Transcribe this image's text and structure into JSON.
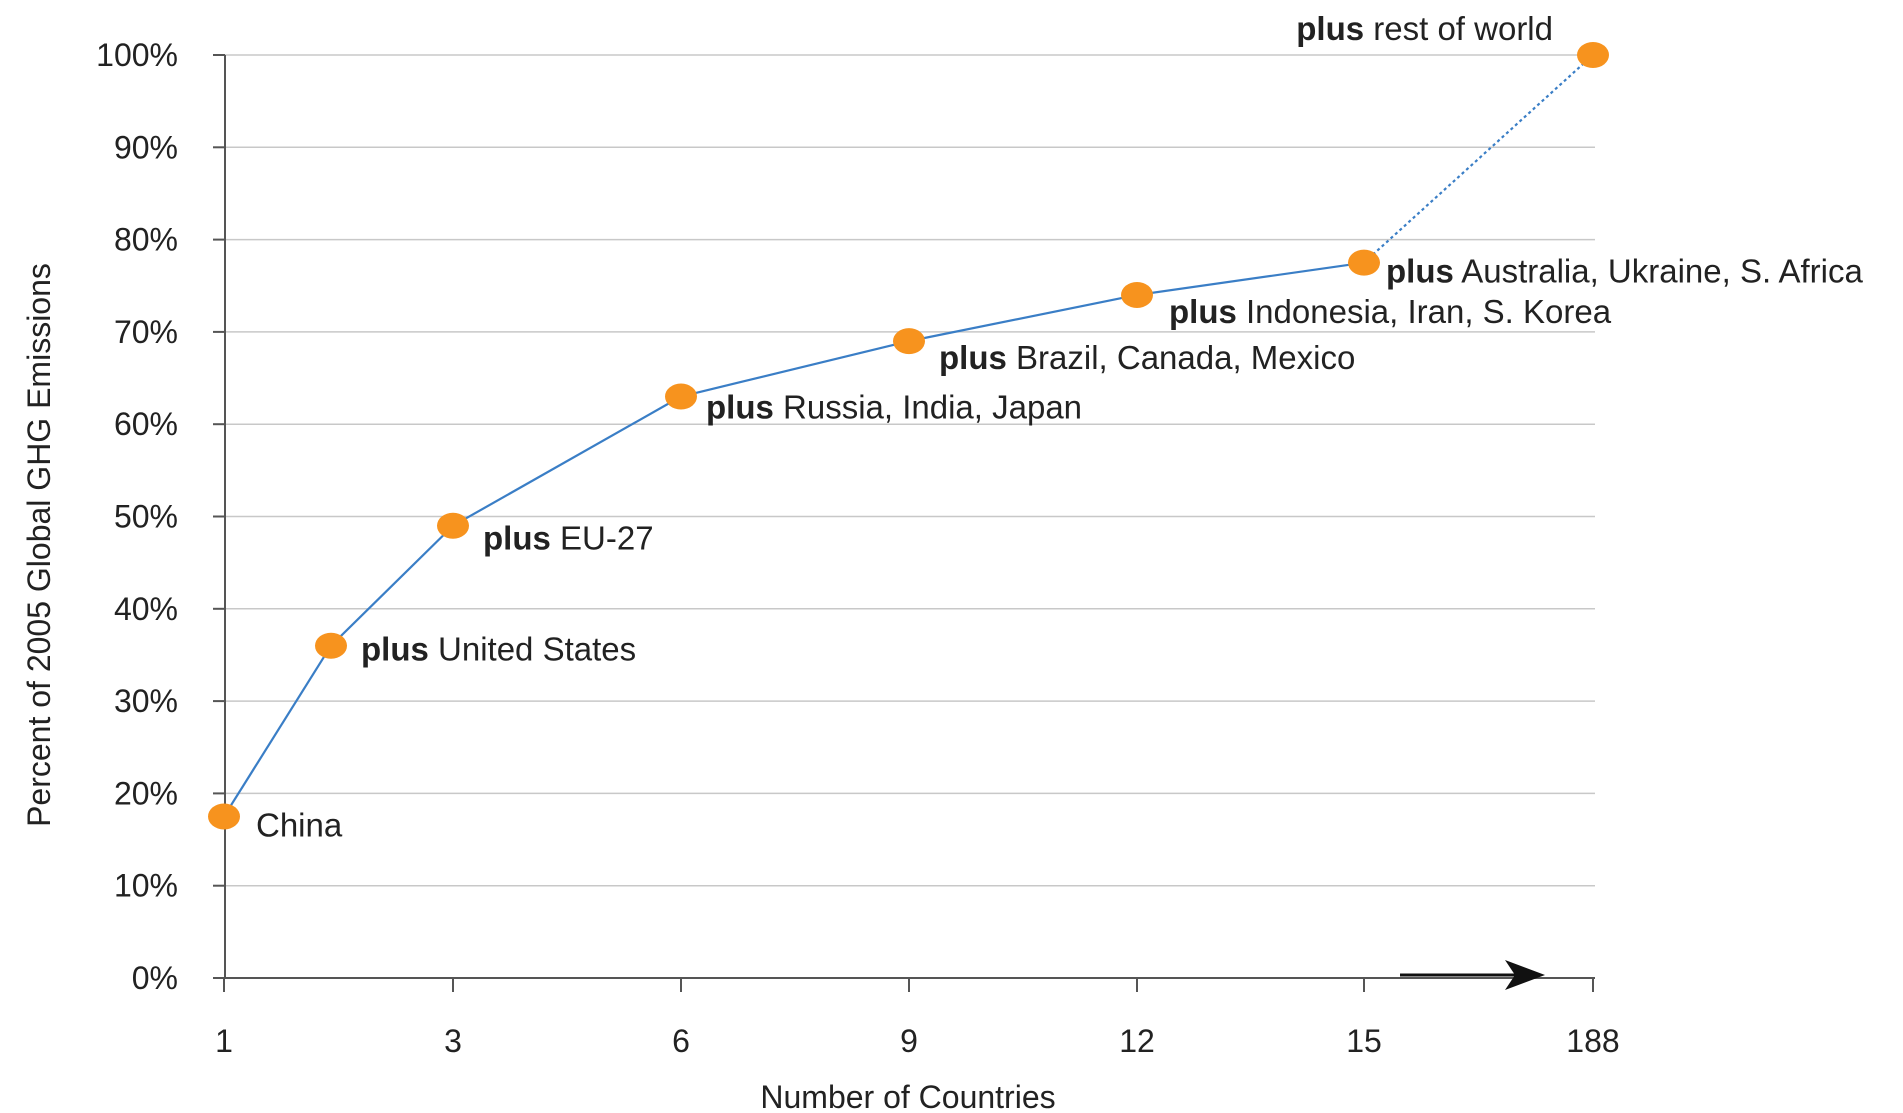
{
  "chart_data": {
    "type": "line",
    "xlabel": "Number of Countries",
    "ylabel": "Percent of 2005 Global GHG Emissions",
    "x_tick_labels": [
      "1",
      "3",
      "6",
      "9",
      "12",
      "15",
      "188"
    ],
    "y_tick_labels": [
      "0%",
      "10%",
      "20%",
      "30%",
      "40%",
      "50%",
      "60%",
      "70%",
      "80%",
      "90%",
      "100%"
    ],
    "ylim": [
      0,
      100
    ],
    "grid": true,
    "colors": {
      "line": "#3a7ec6",
      "marker": "#f7931e",
      "grid": "#c8c8c8",
      "axis": "#555555"
    },
    "points": [
      {
        "x": "1",
        "y": 17.5,
        "prefix": "",
        "label": "China"
      },
      {
        "x": "2",
        "y": 36,
        "prefix": "plus",
        "label": "United States"
      },
      {
        "x": "3",
        "y": 49,
        "prefix": "plus",
        "label": "EU-27"
      },
      {
        "x": "6",
        "y": 63,
        "prefix": "plus",
        "label": "Russia, India, Japan"
      },
      {
        "x": "9",
        "y": 69,
        "prefix": "plus",
        "label": "Brazil, Canada, Mexico"
      },
      {
        "x": "12",
        "y": 74,
        "prefix": "plus",
        "label": "Indonesia, Iran, S. Korea"
      },
      {
        "x": "15",
        "y": 77.5,
        "prefix": "plus",
        "label": "Australia, Ukraine, S. Africa"
      },
      {
        "x": "188",
        "y": 100,
        "prefix": "plus",
        "label": "rest of world"
      }
    ]
  }
}
